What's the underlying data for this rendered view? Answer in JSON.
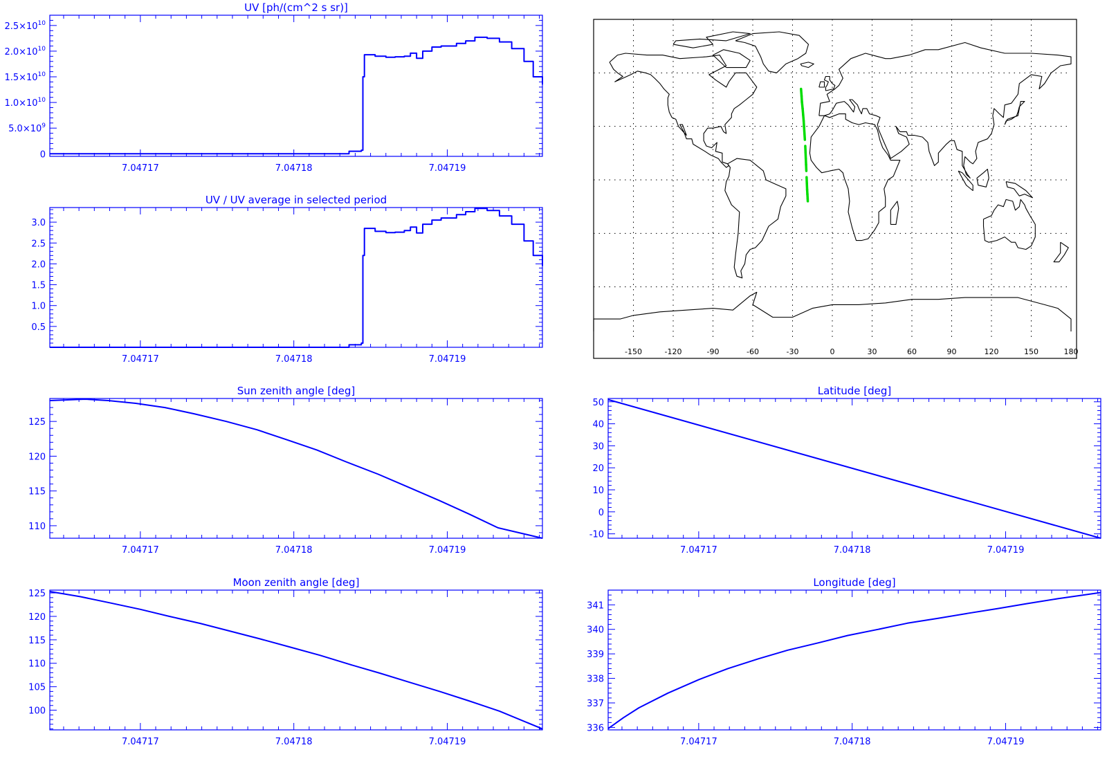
{
  "colors": {
    "plot": "#0000ff",
    "map": "#000000",
    "track": "#00dd00",
    "background": "#ffffff"
  },
  "chart_data": [
    {
      "id": "uv",
      "type": "line",
      "step": true,
      "title": "UV [ph/(cm^2 s sr)]",
      "xlabel": "",
      "ylabel": "",
      "xlim": [
        7.0471641,
        7.0471962
      ],
      "ylim": [
        -500000000.0,
        27000000000.0
      ],
      "x_ticks": [
        7.04717,
        7.04718,
        7.04719
      ],
      "x_tick_labels": [
        "7.04717",
        "7.04718",
        "7.04719"
      ],
      "y_ticks": [
        0,
        5000000000.0,
        10000000000.0,
        15000000000.0,
        20000000000.0,
        25000000000.0
      ],
      "y_tick_labels": [
        {
          "mant": "0",
          "exp": ""
        },
        {
          "mant": "5.0×10",
          "exp": "9"
        },
        {
          "mant": "1.0×10",
          "exp": "10"
        },
        {
          "mant": "1.5×10",
          "exp": "10"
        },
        {
          "mant": "2.0×10",
          "exp": "10"
        },
        {
          "mant": "2.5×10",
          "exp": "10"
        }
      ],
      "series": [
        {
          "x": [
            7.0471641,
            7.0471835,
            7.0471836,
            7.0471838,
            7.0471844,
            7.0471845,
            7.0471846,
            7.0471853,
            7.047186,
            7.0471866,
            7.0471872,
            7.0471876,
            7.047188,
            7.0471884,
            7.047189,
            7.0471896,
            7.04719,
            7.0471906,
            7.0471912,
            7.0471918,
            7.0471926,
            7.0471934,
            7.0471942,
            7.047195,
            7.0471956,
            7.0471962
          ],
          "y": [
            0,
            0,
            500000000.0,
            500000000.0,
            700000000.0,
            15000000000.0,
            19300000000.0,
            19000000000.0,
            18800000000.0,
            18900000000.0,
            19000000000.0,
            19600000000.0,
            18600000000.0,
            20000000000.0,
            20800000000.0,
            21000000000.0,
            21000000000.0,
            21500000000.0,
            22000000000.0,
            22700000000.0,
            22500000000.0,
            21800000000.0,
            20500000000.0,
            18000000000.0,
            15000000000.0,
            13500000000.0
          ]
        }
      ]
    },
    {
      "id": "uvratio",
      "type": "line",
      "step": true,
      "title": "UV / UV average in selected period",
      "xlabel": "",
      "ylabel": "",
      "xlim": [
        7.0471641,
        7.0471962
      ],
      "ylim": [
        0,
        3.35
      ],
      "x_ticks": [
        7.04717,
        7.04718,
        7.04719
      ],
      "x_tick_labels": [
        "7.04717",
        "7.04718",
        "7.04719"
      ],
      "y_ticks": [
        0.5,
        1.0,
        1.5,
        2.0,
        2.5,
        3.0
      ],
      "y_tick_labels": [
        "0.5",
        "1.0",
        "1.5",
        "2.0",
        "2.5",
        "3.0"
      ],
      "series": [
        {
          "x": [
            7.0471641,
            7.0471835,
            7.0471836,
            7.0471838,
            7.0471844,
            7.0471845,
            7.0471846,
            7.0471853,
            7.047186,
            7.0471866,
            7.0471872,
            7.0471876,
            7.047188,
            7.0471884,
            7.047189,
            7.0471896,
            7.04719,
            7.0471906,
            7.0471912,
            7.0471918,
            7.0471926,
            7.0471934,
            7.0471942,
            7.047195,
            7.0471956,
            7.0471962
          ],
          "y": [
            0,
            0,
            0.06,
            0.06,
            0.1,
            2.2,
            2.85,
            2.78,
            2.75,
            2.76,
            2.8,
            2.88,
            2.74,
            2.95,
            3.05,
            3.1,
            3.1,
            3.18,
            3.25,
            3.33,
            3.28,
            3.15,
            2.95,
            2.55,
            2.2,
            1.95
          ]
        }
      ]
    },
    {
      "id": "sza",
      "type": "line",
      "title": "Sun zenith angle [deg]",
      "xlabel": "",
      "ylabel": "",
      "xlim": [
        7.0471641,
        7.0471962
      ],
      "ylim": [
        108.2,
        128.3
      ],
      "x_ticks": [
        7.04717,
        7.04718,
        7.04719
      ],
      "x_tick_labels": [
        "7.04717",
        "7.04718",
        "7.04719"
      ],
      "y_ticks": [
        110,
        115,
        120,
        125
      ],
      "y_tick_labels": [
        "110",
        "115",
        "120",
        "125"
      ],
      "series": [
        {
          "x": [
            7.0471641,
            7.0471664,
            7.0471679,
            7.0471697,
            7.0471716,
            7.0471735,
            7.0471756,
            7.0471776,
            7.0471795,
            7.0471815,
            7.0471834,
            7.0471855,
            7.0471874,
            7.0471895,
            7.0471914,
            7.0471933,
            7.0471962
          ],
          "y": [
            128.0,
            128.2,
            128.0,
            127.6,
            127.0,
            126.1,
            125.0,
            123.8,
            122.4,
            120.9,
            119.2,
            117.4,
            115.6,
            113.6,
            111.7,
            109.7,
            108.2
          ]
        }
      ]
    },
    {
      "id": "lat",
      "type": "line",
      "title": "Latitude [deg]",
      "xlabel": "",
      "ylabel": "",
      "xlim": [
        7.0471641,
        7.0471962
      ],
      "ylim": [
        -12,
        51.5
      ],
      "x_ticks": [
        7.04717,
        7.04718,
        7.04719
      ],
      "x_tick_labels": [
        "7.04717",
        "7.04718",
        "7.04719"
      ],
      "y_ticks": [
        -10,
        0,
        10,
        20,
        30,
        40,
        50
      ],
      "y_tick_labels": [
        "-10",
        "0",
        "10",
        "20",
        "30",
        "40",
        "50"
      ],
      "series": [
        {
          "x": [
            7.0471641,
            7.0471962
          ],
          "y": [
            51.0,
            -12.0
          ]
        }
      ]
    },
    {
      "id": "mza",
      "type": "line",
      "title": "Moon zenith angle [deg]",
      "xlabel": "",
      "ylabel": "",
      "xlim": [
        7.0471641,
        7.0471962
      ],
      "ylim": [
        95.8,
        125.6
      ],
      "x_ticks": [
        7.04717,
        7.04718,
        7.04719
      ],
      "x_tick_labels": [
        "7.04717",
        "7.04718",
        "7.04719"
      ],
      "y_ticks": [
        100,
        105,
        110,
        115,
        120,
        125
      ],
      "y_tick_labels": [
        "100",
        "105",
        "110",
        "115",
        "120",
        "125"
      ],
      "series": [
        {
          "x": [
            7.0471641,
            7.0471661,
            7.047168,
            7.04717,
            7.0471719,
            7.0471739,
            7.0471758,
            7.0471778,
            7.0471797,
            7.0471817,
            7.0471836,
            7.0471856,
            7.0471875,
            7.0471895,
            7.0471914,
            7.0471934,
            7.0471962
          ],
          "y": [
            125.3,
            124.2,
            122.9,
            121.5,
            120.0,
            118.5,
            116.9,
            115.2,
            113.5,
            111.7,
            109.8,
            107.9,
            106.0,
            104.0,
            102.0,
            99.8,
            96.0
          ]
        }
      ]
    },
    {
      "id": "lon",
      "type": "line",
      "title": "Longitude [deg]",
      "xlabel": "",
      "ylabel": "",
      "xlim": [
        7.0471641,
        7.0471962
      ],
      "ylim": [
        335.9,
        341.6
      ],
      "x_ticks": [
        7.04717,
        7.04718,
        7.04719
      ],
      "x_tick_labels": [
        "7.04717",
        "7.04718",
        "7.04719"
      ],
      "y_ticks": [
        336,
        337,
        338,
        339,
        340,
        341
      ],
      "y_tick_labels": [
        "336",
        "337",
        "338",
        "339",
        "340",
        "341"
      ],
      "series": [
        {
          "x": [
            7.0471641,
            7.0471651,
            7.0471661,
            7.047168,
            7.04717,
            7.0471719,
            7.0471739,
            7.0471758,
            7.0471778,
            7.0471797,
            7.0471817,
            7.0471836,
            7.0471856,
            7.0471875,
            7.0471895,
            7.0471914,
            7.0471934,
            7.0471962
          ],
          "y": [
            335.95,
            336.4,
            336.8,
            337.4,
            337.95,
            338.4,
            338.8,
            339.15,
            339.45,
            339.75,
            340.0,
            340.25,
            340.45,
            340.65,
            340.85,
            341.05,
            341.25,
            341.5
          ]
        }
      ]
    },
    {
      "id": "map",
      "type": "scatter",
      "title": "",
      "xlabel": "",
      "ylabel": "",
      "xlim": [
        -180,
        180
      ],
      "ylim": [
        -90,
        90
      ],
      "x_ticks": [
        -150,
        -120,
        -90,
        -60,
        -30,
        0,
        30,
        60,
        90,
        120,
        150,
        180
      ],
      "x_tick_labels": [
        "-150",
        "-120",
        "-90",
        "-60",
        "-30",
        "0",
        "30",
        "60",
        "90",
        "120",
        "150",
        "180"
      ],
      "grid_lon": [
        -150,
        -120,
        -90,
        -60,
        -30,
        0,
        30,
        60,
        90,
        120,
        150
      ],
      "grid_lat": [
        -60,
        -30,
        0,
        30,
        60
      ],
      "series": [
        {
          "lon": [
            -23.6,
            -23.2,
            -22.9,
            -22.4,
            -22.0,
            -21.6,
            -21.3,
            -21.0,
            -20.7,
            -20.4,
            -20.2,
            -20.0,
            -19.8,
            -19.6,
            -19.4,
            -19.2,
            -19.0,
            -18.8,
            -18.6,
            -18.5
          ],
          "lat": [
            51.0,
            47.0,
            43.5,
            40.0,
            36.5,
            33.0,
            29.5,
            26.0,
            22.5,
            19.0,
            15.5,
            12.0,
            8.5,
            5.0,
            1.5,
            -2.0,
            -5.5,
            -8.0,
            -10.5,
            -12.0
          ]
        }
      ]
    }
  ]
}
